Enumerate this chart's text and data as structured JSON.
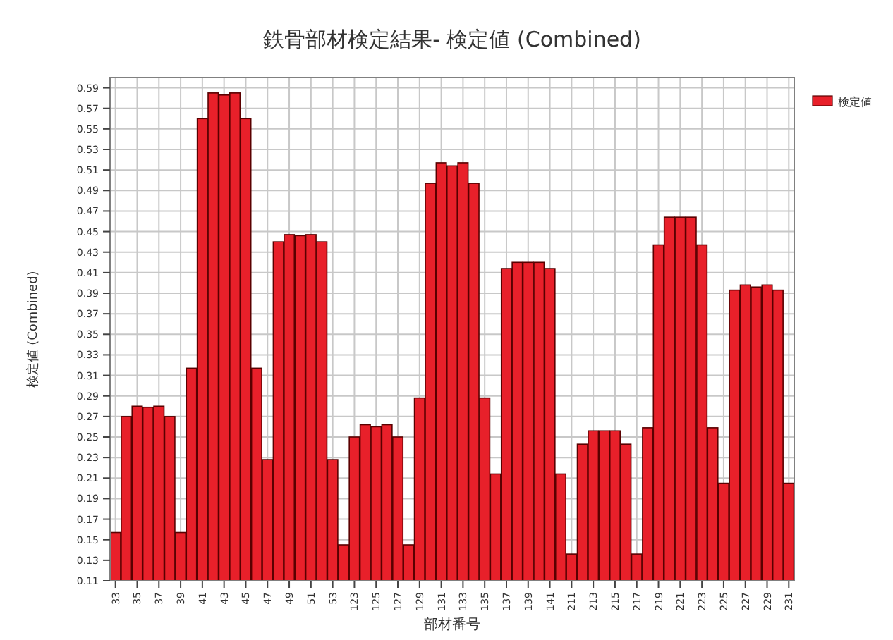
{
  "chart_data": {
    "type": "bar",
    "title": "鉄骨部材検定結果- 検定値 (Combined)",
    "xlabel": "部材番号",
    "ylabel": "検定値 (Combined)",
    "categories": [
      "33",
      null,
      "35",
      null,
      "37",
      null,
      "39",
      null,
      "41",
      null,
      "43",
      null,
      "45",
      null,
      "47",
      null,
      "49",
      null,
      "51",
      null,
      "53",
      null,
      "123",
      null,
      "125",
      null,
      "127",
      null,
      "129",
      null,
      "131",
      null,
      "133",
      null,
      "135",
      null,
      "137",
      null,
      "139",
      null,
      "141",
      null,
      "211",
      null,
      "213",
      null,
      "215",
      null,
      "217",
      null,
      "219",
      null,
      "221",
      null,
      "223",
      null,
      "225",
      null,
      "227",
      null,
      "229",
      null,
      "231"
    ],
    "series": [
      {
        "name": "検定値",
        "color": "#e8202a",
        "values": [
          0.157,
          0.27,
          0.28,
          0.279,
          0.28,
          0.27,
          0.157,
          0.317,
          0.56,
          0.585,
          0.583,
          0.585,
          0.56,
          0.317,
          0.228,
          0.44,
          0.447,
          0.446,
          0.447,
          0.44,
          0.228,
          0.145,
          0.25,
          0.262,
          0.26,
          0.262,
          0.25,
          0.145,
          0.288,
          0.497,
          0.517,
          0.514,
          0.517,
          0.497,
          0.288,
          0.214,
          0.414,
          0.42,
          0.42,
          0.42,
          0.414,
          0.214,
          0.136,
          0.243,
          0.256,
          0.256,
          0.256,
          0.243,
          0.136,
          0.259,
          0.437,
          0.464,
          0.464,
          0.464,
          0.437,
          0.259,
          0.205,
          0.393,
          0.398,
          0.396,
          0.398,
          0.393,
          0.205
        ]
      }
    ],
    "ylim": [
      0.11,
      0.6
    ],
    "yticks": [
      0.11,
      0.13,
      0.15,
      0.17,
      0.19,
      0.21,
      0.23,
      0.25,
      0.27,
      0.29,
      0.31,
      0.33,
      0.35,
      0.37,
      0.39,
      0.41,
      0.43,
      0.45,
      0.47,
      0.49,
      0.51,
      0.53,
      0.55,
      0.57,
      0.59
    ],
    "grid": true,
    "legend": "top right"
  }
}
